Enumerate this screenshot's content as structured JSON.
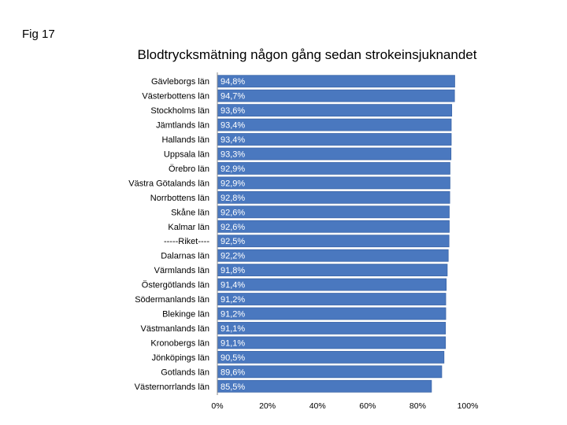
{
  "figure_label": "Fig 17",
  "chart_data": {
    "type": "bar",
    "orientation": "horizontal",
    "title": "Blodtrycksmätning någon gång sedan strokeinsjuknandet",
    "categories": [
      "Gävleborgs län",
      "Västerbottens län",
      "Stockholms län",
      "Jämtlands län",
      "Hallands län",
      "Uppsala län",
      "Örebro län",
      "Västra Götalands län",
      "Norrbottens län",
      "Skåne län",
      "Kalmar län",
      "-----Riket----",
      "Dalarnas län",
      "Värmlands län",
      "Östergötlands län",
      "Södermanlands län",
      "Blekinge län",
      "Västmanlands län",
      "Kronobergs län",
      "Jönköpings län",
      "Gotlands län",
      "Västernorrlands län"
    ],
    "values": [
      94.8,
      94.7,
      93.6,
      93.4,
      93.4,
      93.3,
      92.9,
      92.9,
      92.8,
      92.6,
      92.6,
      92.5,
      92.2,
      91.8,
      91.4,
      91.2,
      91.2,
      91.1,
      91.1,
      90.5,
      89.6,
      85.5
    ],
    "value_labels": [
      "94,8%",
      "94,7%",
      "93,6%",
      "93,4%",
      "93,4%",
      "93,3%",
      "92,9%",
      "92,9%",
      "92,8%",
      "92,6%",
      "92,6%",
      "92,5%",
      "92,2%",
      "91,8%",
      "91,4%",
      "91,2%",
      "91,2%",
      "91,1%",
      "91,1%",
      "90,5%",
      "89,6%",
      "85,5%"
    ],
    "xlim": [
      0,
      100
    ],
    "xticks": [
      "0%",
      "20%",
      "40%",
      "60%",
      "80%",
      "100%"
    ],
    "xlabel": "",
    "ylabel": "",
    "grid": false,
    "colors": {
      "bar": "#4a78bf",
      "bar_border": "#3b65a8",
      "axis": "#888888"
    }
  }
}
